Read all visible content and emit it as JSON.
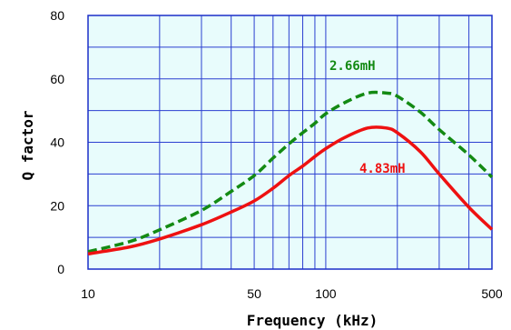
{
  "chart_data": {
    "type": "line",
    "title": "",
    "xlabel": "Frequency (kHz)",
    "ylabel": "Q factor",
    "x_scale": "log",
    "xlim": [
      10,
      500
    ],
    "ylim": [
      0,
      80
    ],
    "x_ticks": [
      10,
      50,
      100,
      500
    ],
    "x_tick_labels": [
      "10",
      "50",
      "100",
      "500"
    ],
    "y_ticks": [
      0,
      20,
      40,
      60,
      80
    ],
    "y_tick_labels": [
      "0",
      "20",
      "40",
      "60",
      "80"
    ],
    "grid": true,
    "plot_background": "#e8fcfc",
    "grid_color": "#2a3fd0",
    "series": [
      {
        "name": "2.66mH",
        "color": "#138a13",
        "style": "dashed",
        "x": [
          10,
          15,
          20,
          30,
          40,
          50,
          60,
          70,
          80,
          90,
          100,
          120,
          150,
          180,
          200,
          250,
          300,
          400,
          500
        ],
        "y": [
          5.5,
          8.7,
          12.4,
          18.5,
          24.5,
          29.5,
          35,
          39.5,
          43,
          46,
          49,
          52.5,
          55.5,
          55.5,
          54.5,
          49.5,
          44,
          36,
          29
        ]
      },
      {
        "name": "4.83mH",
        "color": "#ee1111",
        "style": "solid",
        "x": [
          10,
          15,
          20,
          30,
          40,
          50,
          60,
          70,
          80,
          90,
          100,
          120,
          150,
          180,
          200,
          250,
          300,
          400,
          500
        ],
        "y": [
          4.8,
          7,
          9.5,
          14,
          18,
          21.5,
          25.5,
          29.5,
          32.5,
          35.5,
          38,
          41.5,
          44.5,
          44.5,
          43,
          37,
          30,
          19.5,
          12.5
        ]
      }
    ]
  }
}
